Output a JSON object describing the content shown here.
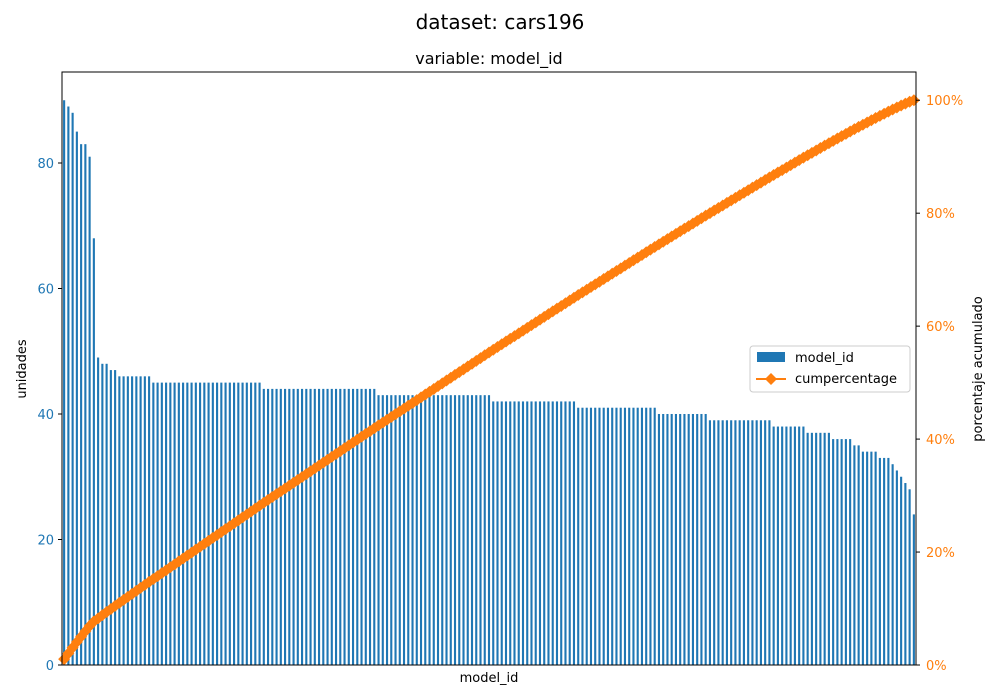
{
  "figure": {
    "suptitle": "dataset: cars196"
  },
  "colors": {
    "bar": "#1f77b4",
    "line": "#ff7f0e",
    "left_axis": "#1f77b4",
    "right_axis": "#ff7f0e",
    "text": "#000000"
  },
  "chart_data": {
    "type": "bar",
    "title": "variable: model_id",
    "xlabel": "model_id",
    "ylabel": "unidades",
    "y2label": "porcentaje acumulado",
    "ylim": [
      0,
      94.5
    ],
    "y2lim": [
      0,
      105
    ],
    "yticks": [
      "0",
      "20",
      "40",
      "60",
      "80"
    ],
    "y2ticks": [
      "0%",
      "20%",
      "40%",
      "60%",
      "80%",
      "100%"
    ],
    "x_tick_labels_shown": false,
    "legend_position": "center-right",
    "series": [
      {
        "name": "model_id",
        "kind": "bar",
        "values": [
          90,
          89,
          88,
          85,
          83,
          83,
          81,
          68,
          49,
          48,
          48,
          47,
          47,
          46,
          46,
          46,
          46,
          46,
          46,
          46,
          46,
          45,
          45,
          45,
          45,
          45,
          45,
          45,
          45,
          45,
          45,
          45,
          45,
          45,
          45,
          45,
          45,
          45,
          45,
          45,
          45,
          45,
          45,
          45,
          45,
          45,
          45,
          44,
          44,
          44,
          44,
          44,
          44,
          44,
          44,
          44,
          44,
          44,
          44,
          44,
          44,
          44,
          44,
          44,
          44,
          44,
          44,
          44,
          44,
          44,
          44,
          44,
          44,
          44,
          43,
          43,
          43,
          43,
          43,
          43,
          43,
          43,
          43,
          43,
          43,
          43,
          43,
          43,
          43,
          43,
          43,
          43,
          43,
          43,
          43,
          43,
          43,
          43,
          43,
          43,
          43,
          42,
          42,
          42,
          42,
          42,
          42,
          42,
          42,
          42,
          42,
          42,
          42,
          42,
          42,
          42,
          42,
          42,
          42,
          42,
          42,
          41,
          41,
          41,
          41,
          41,
          41,
          41,
          41,
          41,
          41,
          41,
          41,
          41,
          41,
          41,
          41,
          41,
          41,
          41,
          40,
          40,
          40,
          40,
          40,
          40,
          40,
          40,
          40,
          40,
          40,
          40,
          39,
          39,
          39,
          39,
          39,
          39,
          39,
          39,
          39,
          39,
          39,
          39,
          39,
          39,
          39,
          38,
          38,
          38,
          38,
          38,
          38,
          38,
          38,
          37,
          37,
          37,
          37,
          37,
          37,
          36,
          36,
          36,
          36,
          36,
          35,
          35,
          34,
          34,
          34,
          34,
          33,
          33,
          33,
          32,
          31,
          30,
          29,
          28,
          24
        ]
      },
      {
        "name": "cumpercentage",
        "kind": "line",
        "marker": "diamond",
        "axis": "right",
        "note_values": "cumulative percentage of bar values (0-100%)"
      }
    ]
  }
}
